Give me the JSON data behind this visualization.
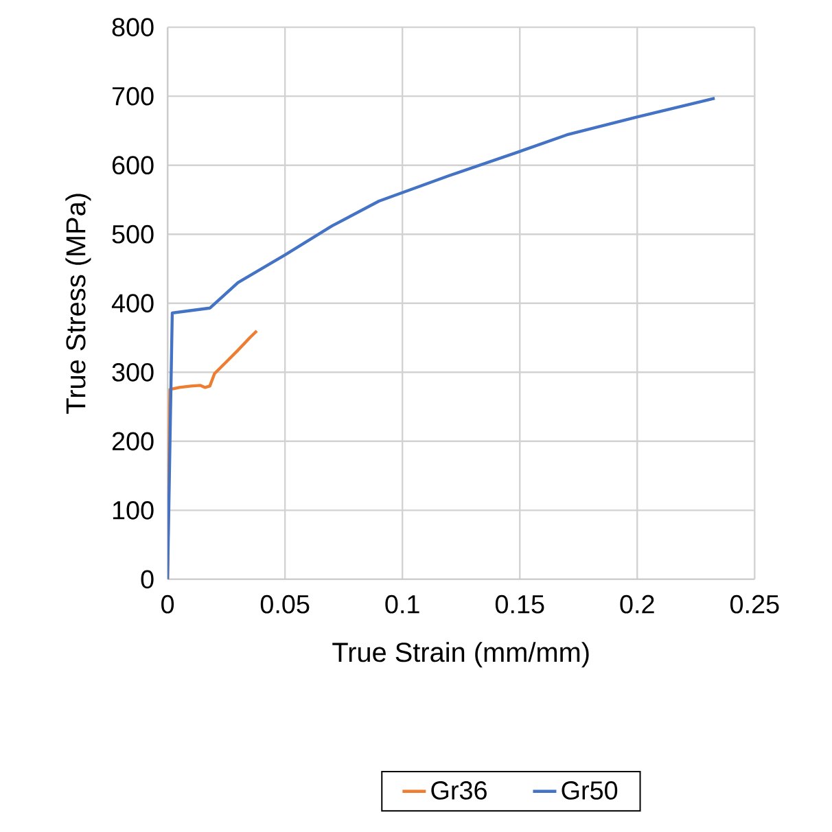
{
  "chart_data": {
    "type": "line",
    "xlabel": "True Strain (mm/mm)",
    "ylabel": "True Stress (MPa)",
    "xlim": [
      0,
      0.25
    ],
    "ylim": [
      0,
      800
    ],
    "xticks": [
      0,
      0.05,
      0.1,
      0.15,
      0.2,
      0.25
    ],
    "yticks": [
      0,
      100,
      200,
      300,
      400,
      500,
      600,
      700,
      800
    ],
    "grid": true,
    "legend": "bottom",
    "marker": "none",
    "line_style": "solid",
    "series": [
      {
        "name": "Gr36",
        "color": "#ed7d31",
        "x": [
          0,
          0.001,
          0.005,
          0.01,
          0.014,
          0.016,
          0.018,
          0.02,
          0.025,
          0.03,
          0.035,
          0.038
        ],
        "values": [
          0,
          275,
          278,
          280,
          281,
          278,
          280,
          298,
          315,
          332,
          350,
          360
        ]
      },
      {
        "name": "Gr50",
        "color": "#4472c4",
        "x": [
          0,
          0.002,
          0.018,
          0.03,
          0.05,
          0.07,
          0.09,
          0.12,
          0.15,
          0.17,
          0.2,
          0.233
        ],
        "values": [
          0,
          386,
          393,
          430,
          470,
          512,
          548,
          585,
          620,
          644,
          670,
          697
        ]
      }
    ]
  }
}
